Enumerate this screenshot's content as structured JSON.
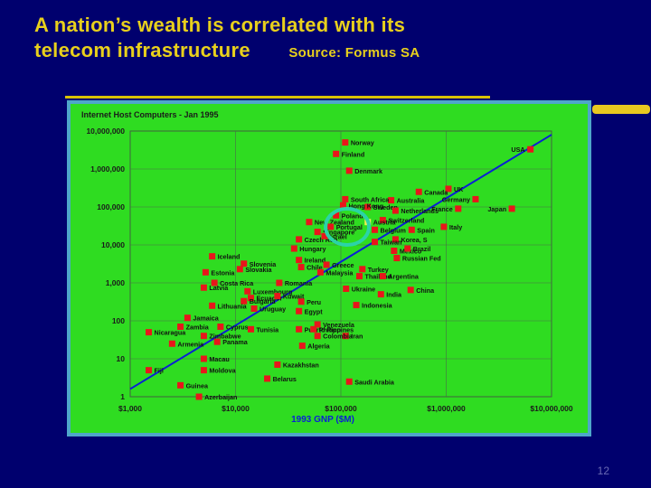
{
  "slide": {
    "title_line1": "A nation’s wealth is correlated with its",
    "title_line2": "telecom infrastructure",
    "source": "Source: Formus SA",
    "page_number": "12"
  },
  "colors": {
    "background": "#00006e",
    "title": "#e8d01c",
    "plot_bg": "#2fdc21",
    "frame": "#4ea7c9",
    "marker": "#e8161b",
    "highlight": "#f0ef4e",
    "trend": "#0a1fd6",
    "circle": "#2bd3a8"
  },
  "chart_data": {
    "type": "scatter",
    "title": "Internet Host Computers - Jan 1995",
    "xlabel": "1993 GNP ($M)",
    "ylabel": "",
    "x_scale": "log",
    "y_scale": "log",
    "xlim": [
      1000,
      10000000
    ],
    "ylim": [
      1,
      10000000
    ],
    "x_ticks": [
      {
        "value": 1000,
        "label": "$1,000"
      },
      {
        "value": 10000,
        "label": "$10,000"
      },
      {
        "value": 100000,
        "label": "$100,000"
      },
      {
        "value": 1000000,
        "label": "$1,000,000"
      },
      {
        "value": 10000000,
        "label": "$10,000,000"
      }
    ],
    "y_ticks": [
      {
        "value": 1,
        "label": "1"
      },
      {
        "value": 10,
        "label": "10"
      },
      {
        "value": 100,
        "label": "100"
      },
      {
        "value": 1000,
        "label": "1,000"
      },
      {
        "value": 10000,
        "label": "10,000"
      },
      {
        "value": 100000,
        "label": "100,000"
      },
      {
        "value": 1000000,
        "label": "1,000,000"
      },
      {
        "value": 10000000,
        "label": "10,000,000"
      }
    ],
    "grid": true,
    "trend_line": {
      "x": [
        1000,
        10000000
      ],
      "y": [
        1.6,
        8000000
      ]
    },
    "highlight_circle": {
      "x": 115000,
      "y": 30000
    },
    "points": [
      {
        "label": "USA",
        "x": 6300000,
        "y": 3300000
      },
      {
        "label": "UK",
        "x": 1050000,
        "y": 300000
      },
      {
        "label": "Germany",
        "x": 1900000,
        "y": 160000
      },
      {
        "label": "Japan",
        "x": 4200000,
        "y": 90000
      },
      {
        "label": "France",
        "x": 1300000,
        "y": 90000
      },
      {
        "label": "Canada",
        "x": 550000,
        "y": 250000
      },
      {
        "label": "Australia",
        "x": 300000,
        "y": 150000
      },
      {
        "label": "Sweden",
        "x": 180000,
        "y": 100000
      },
      {
        "label": "Netherlands",
        "x": 330000,
        "y": 80000
      },
      {
        "label": "Switzerland",
        "x": 250000,
        "y": 45000
      },
      {
        "label": "Norway",
        "x": 110000,
        "y": 5000000
      },
      {
        "label": "Finland",
        "x": 90000,
        "y": 2500000
      },
      {
        "label": "Denmark",
        "x": 120000,
        "y": 900000
      },
      {
        "label": "South Africa",
        "x": 110000,
        "y": 160000
      },
      {
        "label": "Hong Kong",
        "x": 105000,
        "y": 110000
      },
      {
        "label": "Poland",
        "x": 90000,
        "y": 60000
      },
      {
        "label": "New Zealand",
        "x": 50000,
        "y": 40000
      },
      {
        "label": "Portugal",
        "x": 80000,
        "y": 30000
      },
      {
        "label": "Singapore",
        "x": 60000,
        "y": 22000
      },
      {
        "label": "Czech Rep",
        "x": 40000,
        "y": 14000
      },
      {
        "label": "Israel",
        "x": 70000,
        "y": 17000
      },
      {
        "label": "Austria",
        "x": 180000,
        "y": 40000,
        "highlight": true
      },
      {
        "label": "Belgium",
        "x": 210000,
        "y": 25000
      },
      {
        "label": "Spain",
        "x": 470000,
        "y": 25000
      },
      {
        "label": "Italy",
        "x": 950000,
        "y": 30000
      },
      {
        "label": "Korea, S",
        "x": 330000,
        "y": 14000
      },
      {
        "label": "Taiwan",
        "x": 210000,
        "y": 12000
      },
      {
        "label": "Mexico",
        "x": 320000,
        "y": 7000
      },
      {
        "label": "Brazil",
        "x": 430000,
        "y": 8000
      },
      {
        "label": "Russian Fed",
        "x": 340000,
        "y": 4500
      },
      {
        "label": "Hungary",
        "x": 36000,
        "y": 8000
      },
      {
        "label": "Iceland",
        "x": 6000,
        "y": 5000
      },
      {
        "label": "Ireland",
        "x": 40000,
        "y": 4000
      },
      {
        "label": "Chile",
        "x": 42000,
        "y": 2600
      },
      {
        "label": "Greece",
        "x": 73000,
        "y": 3000
      },
      {
        "label": "Slovenia",
        "x": 12000,
        "y": 3200
      },
      {
        "label": "Slovakia",
        "x": 11000,
        "y": 2300
      },
      {
        "label": "Estonia",
        "x": 5200,
        "y": 1900
      },
      {
        "label": "Malaysia",
        "x": 64000,
        "y": 1900
      },
      {
        "label": "Turkey",
        "x": 160000,
        "y": 2300
      },
      {
        "label": "Thailand",
        "x": 150000,
        "y": 1500
      },
      {
        "label": "Argentina",
        "x": 250000,
        "y": 1500
      },
      {
        "label": "Costa Rica",
        "x": 6300,
        "y": 1000
      },
      {
        "label": "Romania",
        "x": 26000,
        "y": 1000
      },
      {
        "label": "Latvia",
        "x": 5000,
        "y": 750
      },
      {
        "label": "Luxembourg",
        "x": 13000,
        "y": 600
      },
      {
        "label": "Ukraine",
        "x": 112000,
        "y": 700
      },
      {
        "label": "China",
        "x": 460000,
        "y": 650
      },
      {
        "label": "India",
        "x": 240000,
        "y": 500
      },
      {
        "label": "Ecuador",
        "x": 14000,
        "y": 400
      },
      {
        "label": "Bulgaria",
        "x": 12000,
        "y": 330
      },
      {
        "label": "Kuwait",
        "x": 25000,
        "y": 450
      },
      {
        "label": "Peru",
        "x": 42000,
        "y": 320
      },
      {
        "label": "Lithuania",
        "x": 6000,
        "y": 250
      },
      {
        "label": "Uruguay",
        "x": 15000,
        "y": 210
      },
      {
        "label": "Egypt",
        "x": 40000,
        "y": 180
      },
      {
        "label": "Indonesia",
        "x": 140000,
        "y": 260
      },
      {
        "label": "Jamaica",
        "x": 3500,
        "y": 120
      },
      {
        "label": "Venezuela",
        "x": 60000,
        "y": 80
      },
      {
        "label": "Zambia",
        "x": 3000,
        "y": 70
      },
      {
        "label": "Nicaragua",
        "x": 1500,
        "y": 50
      },
      {
        "label": "Cyprus",
        "x": 7200,
        "y": 70
      },
      {
        "label": "Tunisia",
        "x": 14000,
        "y": 60
      },
      {
        "label": "Puerto Rico",
        "x": 40000,
        "y": 60
      },
      {
        "label": "Philippines",
        "x": 55000,
        "y": 60
      },
      {
        "label": "Zimbabwe",
        "x": 5000,
        "y": 40
      },
      {
        "label": "Iran",
        "x": 111000,
        "y": 40
      },
      {
        "label": "Colombia",
        "x": 60000,
        "y": 40
      },
      {
        "label": "Panama",
        "x": 6700,
        "y": 28
      },
      {
        "label": "Armenia",
        "x": 2500,
        "y": 25
      },
      {
        "label": "Algeria",
        "x": 43000,
        "y": 22
      },
      {
        "label": "Macau",
        "x": 5000,
        "y": 10
      },
      {
        "label": "Fiji",
        "x": 1500,
        "y": 5
      },
      {
        "label": "Moldova",
        "x": 5000,
        "y": 5
      },
      {
        "label": "Kazakhstan",
        "x": 25000,
        "y": 7
      },
      {
        "label": "Guinea",
        "x": 3000,
        "y": 2
      },
      {
        "label": "Belarus",
        "x": 20000,
        "y": 3
      },
      {
        "label": "Saudi Arabia",
        "x": 120000,
        "y": 2.5
      },
      {
        "label": "Azerbaijan",
        "x": 4500,
        "y": 1
      }
    ]
  }
}
